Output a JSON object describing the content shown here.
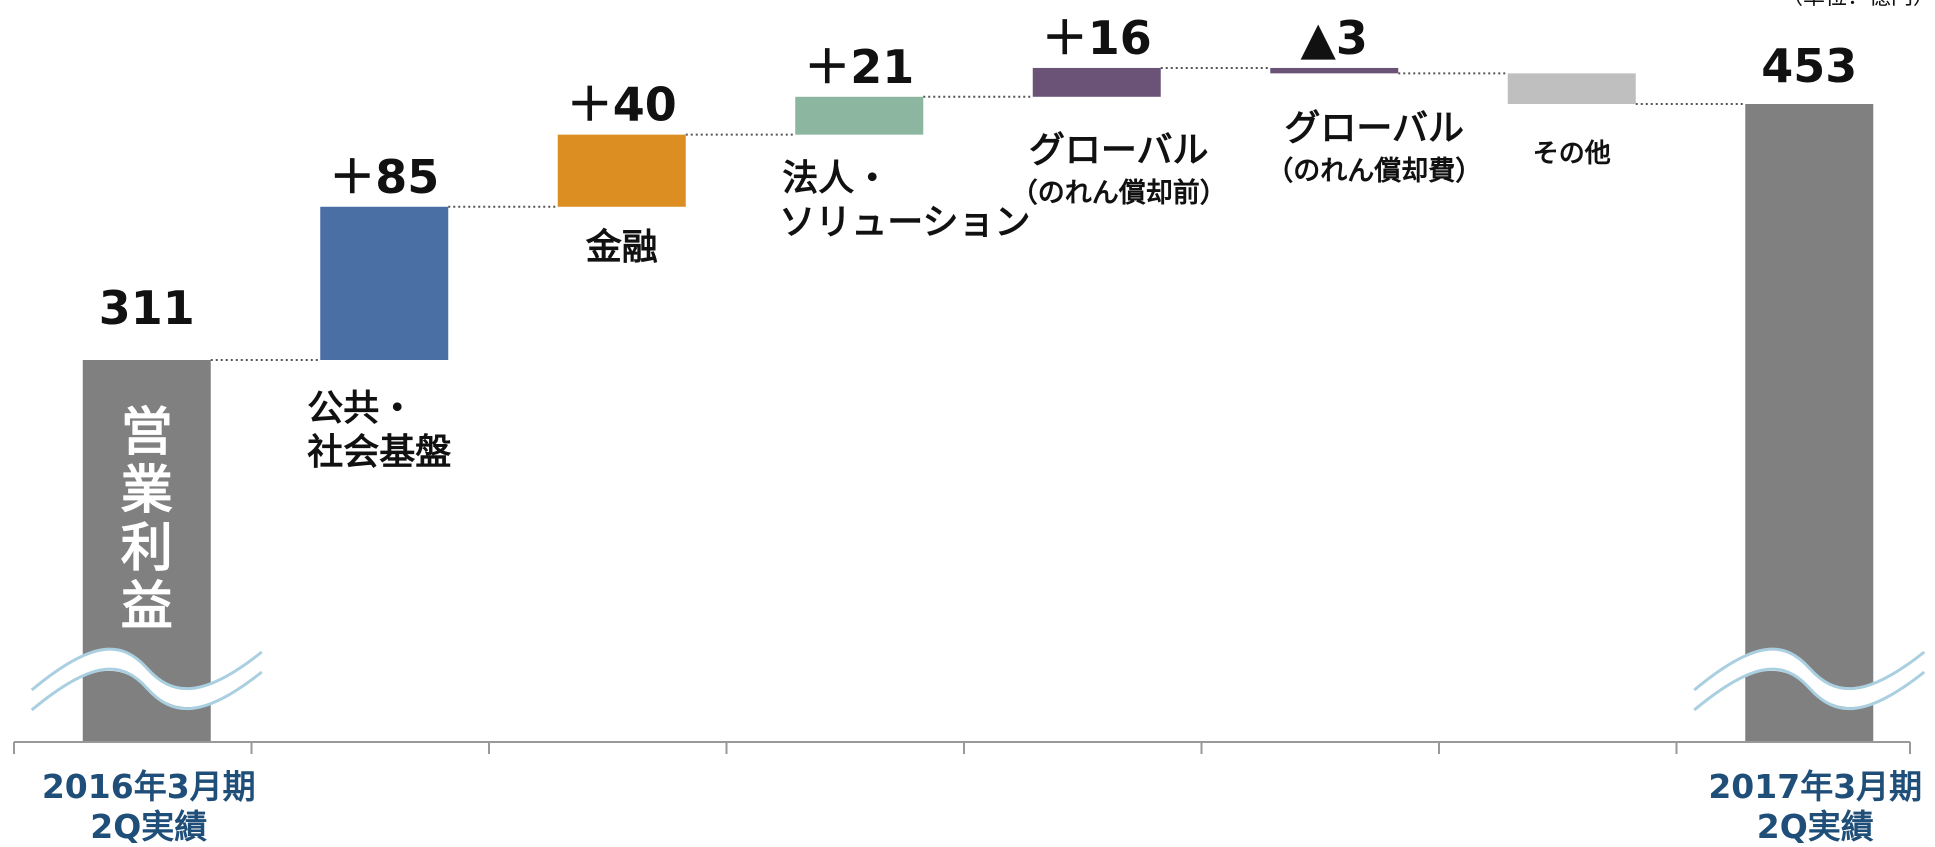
{
  "chart_data": {
    "type": "waterfall",
    "unit": "（単位：億円）",
    "start": {
      "value": 311,
      "value_label": "311",
      "bar_text": "営業利益",
      "axis_label": [
        "2016年3月期",
        "2Q実績"
      ],
      "color": "#808080"
    },
    "steps": [
      {
        "value": 85,
        "value_label": "＋85",
        "label": [
          "公共・",
          "社会基盤"
        ],
        "color": "#4a6fa5"
      },
      {
        "value": 40,
        "value_label": "＋40",
        "label": [
          "金融"
        ],
        "color": "#dd8e22"
      },
      {
        "value": 21,
        "value_label": "＋21",
        "label": [
          "法人・",
          "ソリューション"
        ],
        "color": "#8db6a0"
      },
      {
        "value": 16,
        "value_label": "＋16",
        "label": [
          "グローバル",
          "（のれん償却前）"
        ],
        "color": "#6b5378"
      },
      {
        "value": -3,
        "value_label": "▲3",
        "label": [
          "グローバル",
          "（のれん償却費）"
        ],
        "color": "#6b5378"
      },
      {
        "value": -17,
        "value_label": "",
        "label": [
          "その他"
        ],
        "color": "#bfbfbf"
      }
    ],
    "end": {
      "value": 453,
      "value_label": "453",
      "axis_label": [
        "2017年3月期",
        "2Q実績"
      ],
      "color": "#808080"
    },
    "axis_break": true,
    "colors": {
      "total": "#808080",
      "axis_text": "#1f4e79",
      "connector": "#555555",
      "break_line": "#a9cfe0"
    }
  }
}
